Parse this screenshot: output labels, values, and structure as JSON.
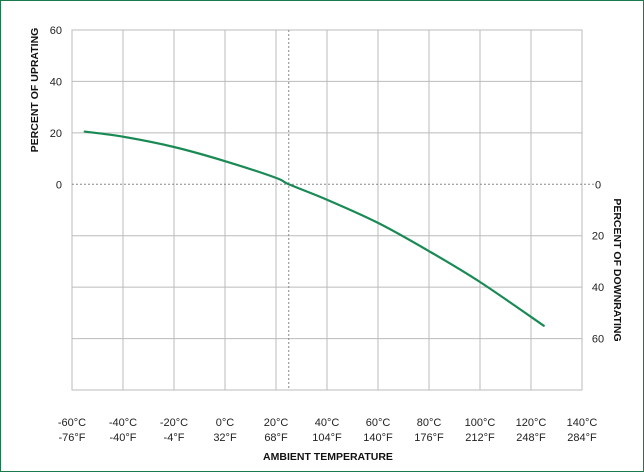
{
  "chart_data": {
    "type": "line",
    "title": "",
    "xlabel": "AMBIENT TEMPERATURE",
    "ylabel_left": "PERCENT OF UPRATING",
    "ylabel_right": "PERCENT OF DOWNRATING",
    "x_unit": "°C",
    "xlim": [
      -60,
      140
    ],
    "x_ticks": [
      {
        "c": -60,
        "celsius": "-60°C",
        "fahrenheit": "-76°F"
      },
      {
        "c": -40,
        "celsius": "-40°C",
        "fahrenheit": "-40°F"
      },
      {
        "c": -20,
        "celsius": "-20°C",
        "fahrenheit": "-4°F"
      },
      {
        "c": 0,
        "celsius": "0°C",
        "fahrenheit": "32°F"
      },
      {
        "c": 20,
        "celsius": "20°C",
        "fahrenheit": "68°F"
      },
      {
        "c": 40,
        "celsius": "40°C",
        "fahrenheit": "104°F"
      },
      {
        "c": 60,
        "celsius": "60°C",
        "fahrenheit": "140°F"
      },
      {
        "c": 80,
        "celsius": "80°C",
        "fahrenheit": "176°F"
      },
      {
        "c": 100,
        "celsius": "100°C",
        "fahrenheit": "212°F"
      },
      {
        "c": 120,
        "celsius": "120°C",
        "fahrenheit": "248°F"
      },
      {
        "c": 140,
        "celsius": "140°C",
        "fahrenheit": "284°F"
      }
    ],
    "ylim": [
      -80,
      60
    ],
    "y_ticks_left": [
      {
        "v": 60,
        "label": "60"
      },
      {
        "v": 40,
        "label": "40"
      },
      {
        "v": 20,
        "label": "20"
      },
      {
        "v": 0,
        "label": "0"
      }
    ],
    "y_ticks_right": [
      {
        "v": 0,
        "label": "0"
      },
      {
        "v": -20,
        "label": "20"
      },
      {
        "v": -40,
        "label": "40"
      },
      {
        "v": -60,
        "label": "60"
      }
    ],
    "grid": true,
    "reference_line_x": 25,
    "series": [
      {
        "color": "#1a8a55",
        "x": [
          -55,
          -40,
          -20,
          0,
          20,
          25,
          40,
          60,
          80,
          100,
          125
        ],
        "y": [
          20.5,
          18.5,
          14.5,
          9,
          2.5,
          0,
          -6,
          -15,
          -26,
          -38,
          -55
        ]
      }
    ]
  },
  "colors": {
    "frame": "#1a7a4c",
    "grid": "#bbbbbb",
    "curve": "#1a8a55"
  }
}
